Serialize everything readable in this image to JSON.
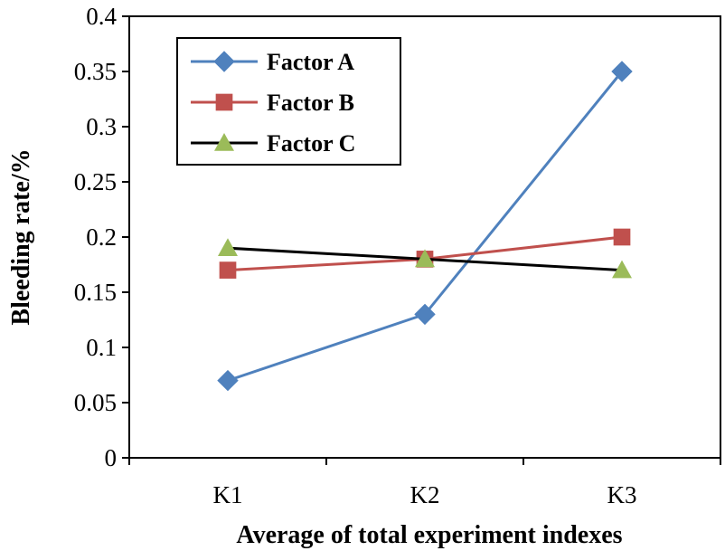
{
  "chart_data": {
    "type": "line",
    "categories": [
      "K1",
      "K2",
      "K3"
    ],
    "series": [
      {
        "name": "Factor A",
        "values": [
          0.07,
          0.13,
          0.35
        ],
        "color": "#4f81bd",
        "marker": "diamond"
      },
      {
        "name": "Factor B",
        "values": [
          0.17,
          0.18,
          0.2
        ],
        "color": "#c0504d",
        "marker": "square"
      },
      {
        "name": "Factor C",
        "values": [
          0.19,
          0.18,
          0.17
        ],
        "color": "#000000",
        "marker": "triangle",
        "marker_color": "#9bbb59"
      }
    ],
    "xlabel": "Average of total experiment indexes",
    "ylabel": "Bleeding rate/%",
    "ylim": [
      0,
      0.4
    ],
    "yticks": [
      "0",
      "0.05",
      "0.1",
      "0.15",
      "0.2",
      "0.25",
      "0.3",
      "0.35",
      "0.4"
    ],
    "ytick_values": [
      0,
      0.05,
      0.1,
      0.15,
      0.2,
      0.25,
      0.3,
      0.35,
      0.4
    ],
    "grid": false,
    "legend_position": "top-left"
  }
}
